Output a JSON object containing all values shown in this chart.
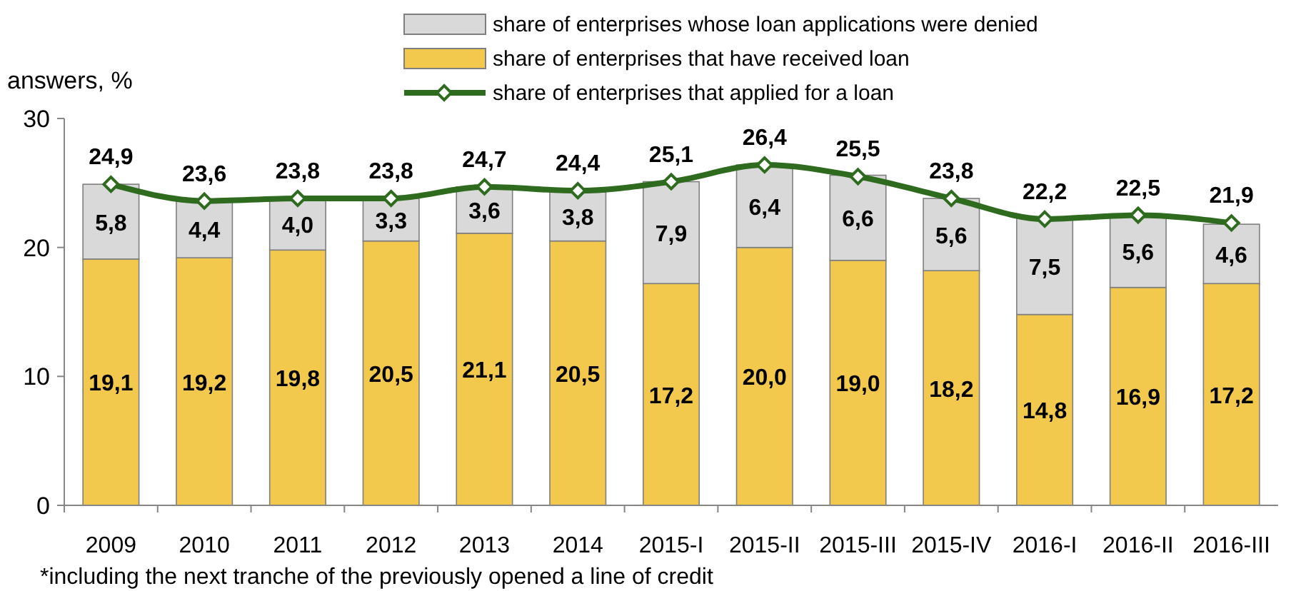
{
  "chart_data": {
    "type": "bar",
    "stacked": true,
    "ylabel": "answers, %",
    "ylim": [
      0,
      30
    ],
    "yticks": [
      0,
      10,
      20,
      30
    ],
    "legend": "top",
    "marker": "diamond",
    "categories": [
      "2009",
      "2010",
      "2011",
      "2012",
      "2013",
      "2014",
      "2015-I",
      "2015-II",
      "2015-III",
      "2015-IV",
      "2016-I",
      "2016-II",
      "2016-III"
    ],
    "series": [
      {
        "name": "share of enterprises that have received loan",
        "color": "#f2c94c",
        "values": [
          19.1,
          19.2,
          19.8,
          20.5,
          21.1,
          20.5,
          17.2,
          20.0,
          19.0,
          18.2,
          14.8,
          16.9,
          17.2
        ],
        "value_labels": [
          "19,1",
          "19,2",
          "19,8",
          "20,5",
          "21,1",
          "20,5",
          "17,2",
          "20,0",
          "19,0",
          "18,2",
          "14,8",
          "16,9",
          "17,2"
        ]
      },
      {
        "name": "share of enterprises whose loan applications were denied",
        "color": "#d9d9d9",
        "values": [
          5.8,
          4.4,
          4.0,
          3.3,
          3.6,
          3.8,
          7.9,
          6.4,
          6.6,
          5.6,
          7.5,
          5.6,
          4.6
        ],
        "value_labels": [
          "5,8",
          "4,4",
          "4,0",
          "3,3",
          "3,6",
          "3,8",
          "7,9",
          "6,4",
          "6,6",
          "5,6",
          "7,5",
          "5,6",
          "4,6"
        ]
      },
      {
        "name": "share of enterprises that applied for a loan",
        "type": "line",
        "color": "#2e6b1f",
        "values": [
          24.9,
          23.6,
          23.8,
          23.8,
          24.7,
          24.4,
          25.1,
          26.4,
          25.5,
          23.8,
          22.2,
          22.5,
          21.9
        ],
        "value_labels": [
          "24,9",
          "23,6",
          "23,8",
          "23,8",
          "24,7",
          "24,4",
          "25,1",
          "26,4",
          "25,5",
          "23,8",
          "22,2",
          "22,5",
          "21,9"
        ]
      }
    ],
    "annotations": [
      "*including the next tranche of the previously opened a line of credit"
    ]
  }
}
